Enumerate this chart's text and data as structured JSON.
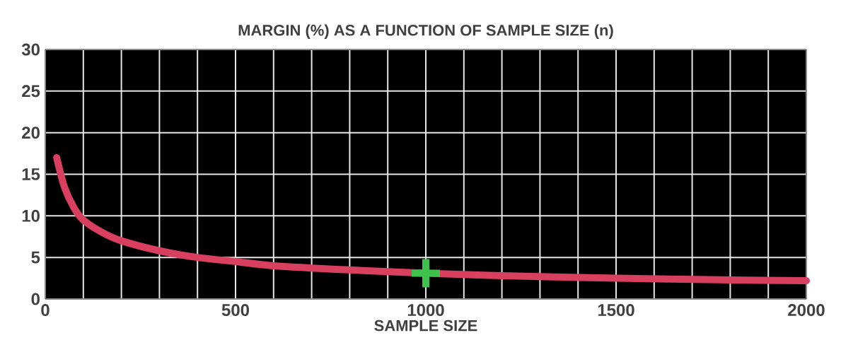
{
  "chart_data": {
    "type": "line",
    "title": "MARGIN (%) AS A FUNCTION OF SAMPLE SIZE (n)",
    "xlabel": "SAMPLE SIZE",
    "xlim": [
      0,
      2000
    ],
    "ylim": [
      0,
      30
    ],
    "xticks": [
      0,
      {
        "value": 100,
        "label": null
      },
      {
        "value": 200,
        "label": null
      },
      {
        "value": 300,
        "label": null
      },
      {
        "value": 400,
        "label": null
      },
      500,
      {
        "value": 600,
        "label": null
      },
      {
        "value": 700,
        "label": null
      },
      {
        "value": 800,
        "label": null
      },
      {
        "value": 900,
        "label": null
      },
      1000,
      {
        "value": 1100,
        "label": null
      },
      {
        "value": 1200,
        "label": null
      },
      {
        "value": 1300,
        "label": null
      },
      {
        "value": 1400,
        "label": null
      },
      1500,
      {
        "value": 1600,
        "label": null
      },
      {
        "value": 1700,
        "label": null
      },
      {
        "value": 1800,
        "label": null
      },
      {
        "value": 1900,
        "label": null
      },
      2000
    ],
    "yticks": [
      0,
      5,
      10,
      15,
      20,
      25,
      30
    ],
    "grid": true,
    "series": [
      {
        "color": "#d9405f",
        "marker": "none",
        "x": [
          30,
          50,
          75,
          100,
          150,
          200,
          300,
          400,
          500,
          600,
          800,
          1000,
          1200,
          1500,
          1800,
          2000
        ],
        "values": [
          17,
          13.5,
          11,
          9.5,
          8,
          7,
          5.8,
          5,
          4.5,
          4,
          3.5,
          3.1,
          2.8,
          2.5,
          2.3,
          2.2
        ]
      },
      {
        "type": "scatter",
        "color": "#3fc24a",
        "marker": "cross",
        "x": [
          1000
        ],
        "values": [
          3.1
        ]
      }
    ]
  }
}
